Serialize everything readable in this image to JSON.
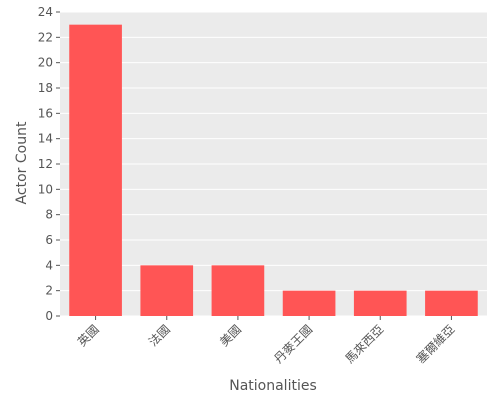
{
  "chart_data": {
    "type": "bar",
    "categories": [
      "英國",
      "法國",
      "美國",
      "丹麥王國",
      "馬來西亞",
      "塞爾維亞"
    ],
    "values": [
      23,
      4,
      4,
      2,
      2,
      2
    ],
    "xlabel": "Nationalities",
    "ylabel": "Actor Count",
    "ylim": [
      0,
      24
    ],
    "yticks": [
      0,
      2,
      4,
      6,
      8,
      10,
      12,
      14,
      16,
      18,
      20,
      22,
      24
    ],
    "grid": true,
    "colors": {
      "bar": "#ff5555",
      "plot_background": "#ebebeb",
      "grid": "#ffffff"
    }
  }
}
